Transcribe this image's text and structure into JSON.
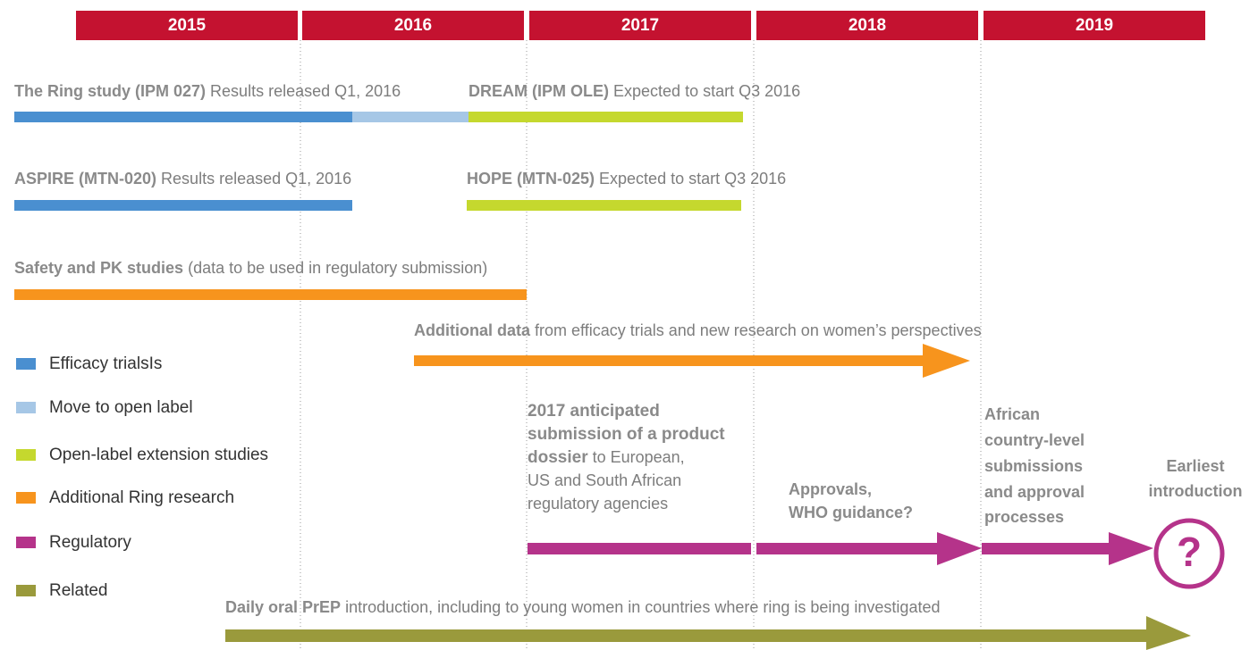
{
  "years": [
    "2015",
    "2016",
    "2017",
    "2018",
    "2019"
  ],
  "trials": [
    {
      "name": "The Ring study (IPM 027)",
      "note": "Results released Q1, 2016"
    },
    {
      "name": "DREAM (IPM OLE)",
      "note": "Expected to start Q3 2016"
    },
    {
      "name": "ASPIRE (MTN-020)",
      "note": "Results released Q1, 2016"
    },
    {
      "name": "HOPE (MTN-025)",
      "note": "Expected to start Q3 2016"
    },
    {
      "name": "Safety and PK studies",
      "note": "(data to be used in regulatory submission)"
    },
    {
      "name": "Additional data",
      "note": "from efficacy trials and new research on women’s perspectives"
    }
  ],
  "legend": [
    "Efficacy trialsIs",
    "Move to open label",
    "Open-label extension studies",
    "Additional Ring research",
    "Regulatory",
    "Related"
  ],
  "regulatory": {
    "dossier": {
      "bold_lines": [
        "2017 anticipated",
        "submission of a product",
        "dossier"
      ],
      "lines": [
        "to European,",
        "US and South African",
        "regulatory agencies"
      ]
    },
    "approvals": [
      "Approvals,",
      "WHO guidance?"
    ],
    "african": [
      "African",
      "country-level",
      "submissions",
      "and approval",
      "processes"
    ],
    "earliest": [
      "Earliest",
      "introduction"
    ],
    "symbol": "?"
  },
  "related": {
    "name": "Daily oral PrEP",
    "note": "introduction, including to young women in countries where ring is being investigated"
  }
}
